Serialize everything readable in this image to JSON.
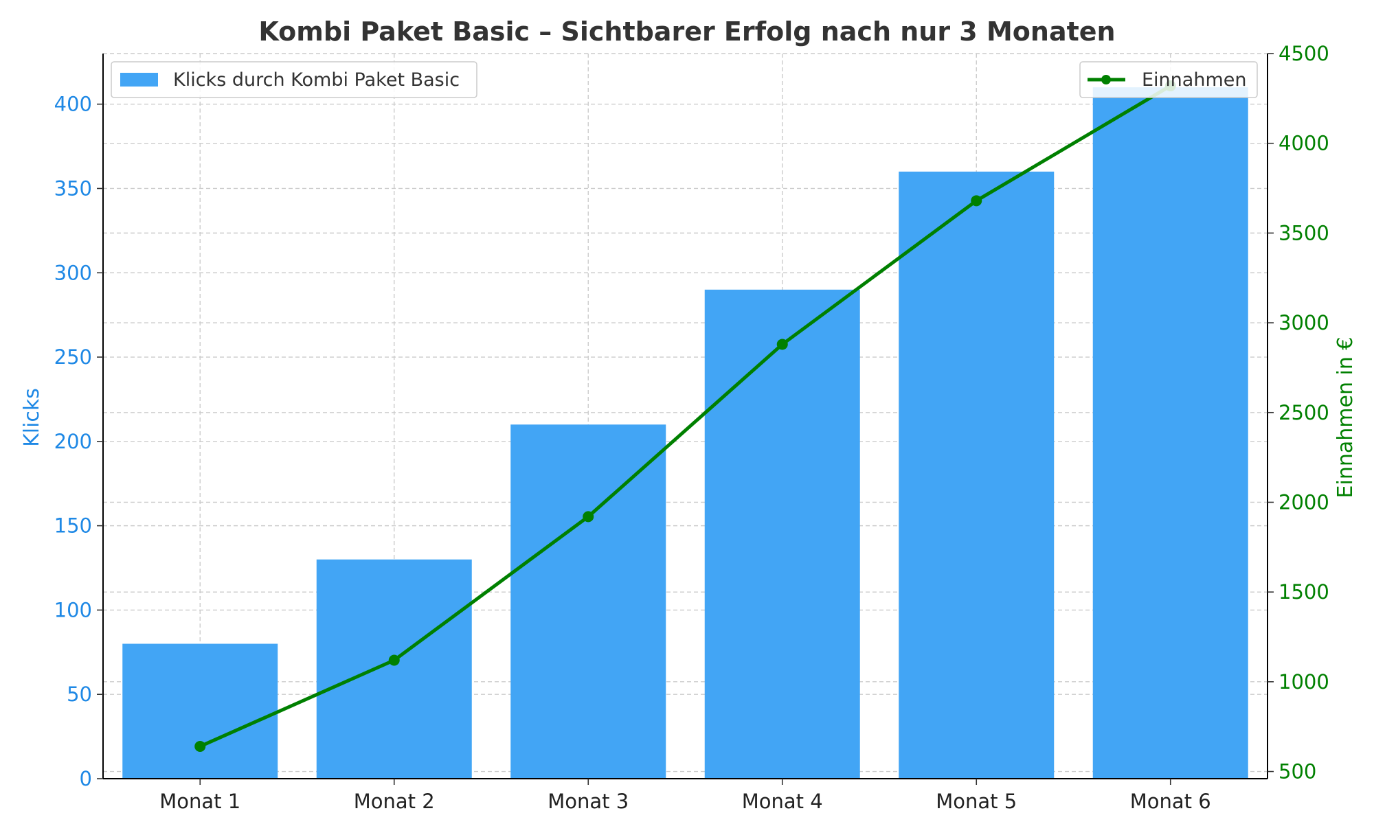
{
  "chart_data": {
    "type": "bar",
    "title": "Kombi Paket Basic – Sichtbarer Erfolg nach nur 3 Monaten",
    "categories": [
      "Monat 1",
      "Monat 2",
      "Monat 3",
      "Monat 4",
      "Monat 5",
      "Monat 6"
    ],
    "series": [
      {
        "name": "Klicks durch Kombi Paket Basic",
        "type": "bar",
        "axis": "left",
        "color": "#42a5f5",
        "values": [
          80,
          130,
          210,
          290,
          360,
          410
        ]
      },
      {
        "name": "Einnahmen",
        "type": "line",
        "axis": "right",
        "color": "#008000",
        "marker": "circle",
        "values": [
          640,
          1120,
          1920,
          2880,
          3680,
          4320
        ]
      }
    ],
    "y_left": {
      "label": "Klicks",
      "color": "#1e88e5",
      "lim": [
        0,
        430
      ],
      "ticks": [
        0,
        50,
        100,
        150,
        200,
        250,
        300,
        350,
        400
      ]
    },
    "y_right": {
      "label": "Einnahmen in €",
      "color": "#008000",
      "lim": [
        460,
        4500
      ],
      "ticks": [
        500,
        1000,
        1500,
        2000,
        2500,
        3000,
        3500,
        4000,
        4500
      ]
    },
    "xlabel": "",
    "grid": true,
    "grid_style": "dashed",
    "legend_left_placement": "top-left",
    "legend_right_placement": "top-right"
  }
}
